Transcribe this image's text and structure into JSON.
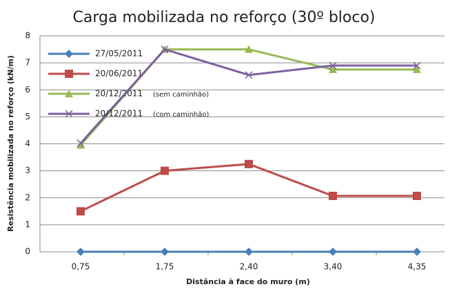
{
  "chart_data": {
    "type": "line",
    "title": "Carga mobilizada no reforço (30º bloco)",
    "x_label": "Distância à face do muro (m)",
    "y_label": "Resistência mobilizada no reforço (kN/m)",
    "categories": [
      "0,75",
      "1,75",
      "2,40",
      "3,40",
      "4,35"
    ],
    "ylim": [
      0,
      8
    ],
    "yticks": [
      0,
      1,
      2,
      3,
      4,
      5,
      6,
      7,
      8
    ],
    "grid": true,
    "legend": "upper left",
    "series": [
      {
        "name": "27/05/2011",
        "color": "#4a7ebb",
        "marker": "diamond",
        "values": [
          0,
          0,
          0,
          0,
          0
        ]
      },
      {
        "name": "20/06/2011",
        "color": "#be4b48",
        "marker": "square",
        "values": [
          1.5,
          3.0,
          3.25,
          2.07,
          2.07
        ]
      },
      {
        "name": "20/12/2011",
        "note": "(sem caminhão)",
        "color": "#98b954",
        "marker": "triangle",
        "values": [
          3.95,
          7.5,
          7.5,
          6.75,
          6.75
        ]
      },
      {
        "name": "20/12/2011",
        "note": "(com caminhão)",
        "color": "#7d60a0",
        "marker": "x",
        "values": [
          4.02,
          7.5,
          6.55,
          6.9,
          6.9
        ]
      }
    ]
  }
}
